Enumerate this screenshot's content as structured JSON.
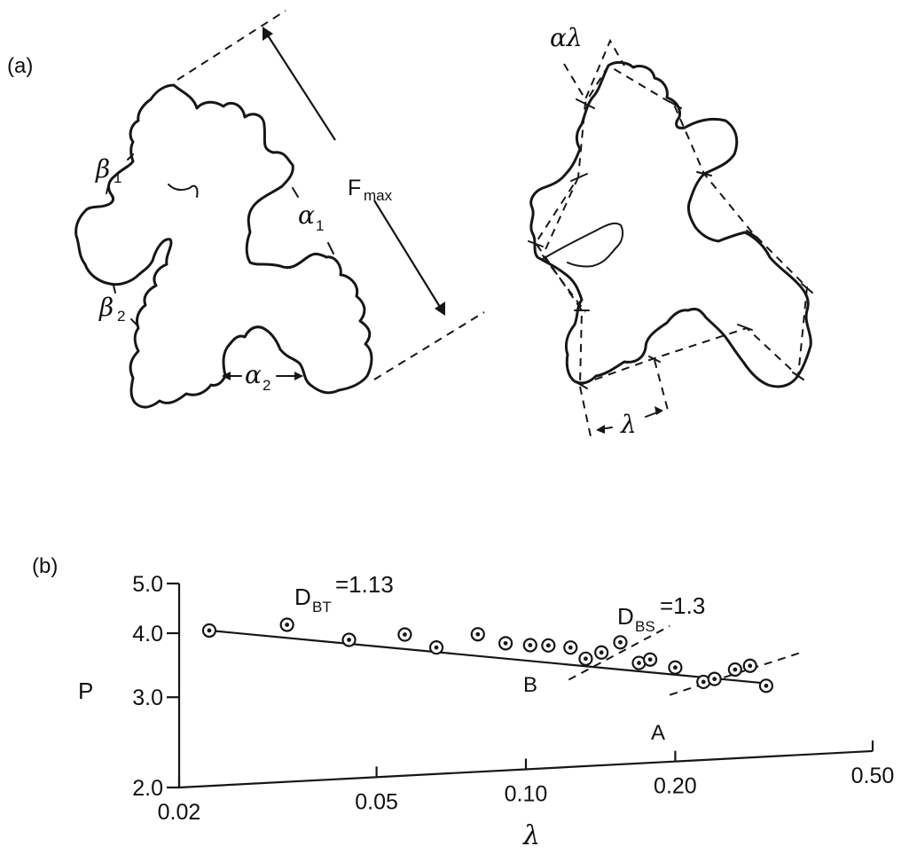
{
  "panel_a": {
    "label": "(a)",
    "fmax_main": "F",
    "fmax_sub": "max",
    "beta1_main": "β",
    "beta1_sub": "1",
    "beta2_main": "β",
    "beta2_sub": "2",
    "alpha1_main": "α",
    "alpha1_sub": "1",
    "alpha2_main": "α",
    "alpha2_sub": "2",
    "alpha_lambda": "αλ",
    "lambda": "λ"
  },
  "panel_b": {
    "label": "(b)",
    "ylabel": "P",
    "xlabel": "λ",
    "dbt_main": "D",
    "dbt_sub": "BT",
    "dbt_value": "=1.13",
    "dbs_main": "D",
    "dbs_sub": "BS",
    "dbs_value": "=1.3",
    "line_a_label": "A",
    "line_b_label": "B"
  },
  "chart_data": {
    "type": "scatter",
    "xscale": "log",
    "yscale": "log",
    "xlim": [
      0.02,
      0.5
    ],
    "ylim": [
      2.0,
      5.0
    ],
    "xticks": [
      {
        "value": 0.02,
        "label": "0.02"
      },
      {
        "value": 0.05,
        "label": "0.05"
      },
      {
        "value": 0.1,
        "label": "0.10"
      },
      {
        "value": 0.2,
        "label": "0.20"
      },
      {
        "value": 0.5,
        "label": "0.50"
      }
    ],
    "yticks": [
      {
        "value": 2.0,
        "label": "2.0"
      },
      {
        "value": 3.0,
        "label": "3.0"
      },
      {
        "value": 4.0,
        "label": "4.0"
      },
      {
        "value": 5.0,
        "label": "5.0"
      }
    ],
    "xlabel": "λ",
    "ylabel": "P",
    "grid": false,
    "points": [
      {
        "x": 0.023,
        "y": 4.02
      },
      {
        "x": 0.033,
        "y": 4.05
      },
      {
        "x": 0.044,
        "y": 3.73
      },
      {
        "x": 0.057,
        "y": 3.77
      },
      {
        "x": 0.066,
        "y": 3.53
      },
      {
        "x": 0.08,
        "y": 3.71
      },
      {
        "x": 0.091,
        "y": 3.54
      },
      {
        "x": 0.102,
        "y": 3.49
      },
      {
        "x": 0.111,
        "y": 3.47
      },
      {
        "x": 0.123,
        "y": 3.42
      },
      {
        "x": 0.132,
        "y": 3.24
      },
      {
        "x": 0.142,
        "y": 3.32
      },
      {
        "x": 0.155,
        "y": 3.46
      },
      {
        "x": 0.169,
        "y": 3.14
      },
      {
        "x": 0.178,
        "y": 3.18
      },
      {
        "x": 0.2,
        "y": 3.05
      },
      {
        "x": 0.228,
        "y": 2.84
      },
      {
        "x": 0.24,
        "y": 2.87
      },
      {
        "x": 0.264,
        "y": 2.98
      },
      {
        "x": 0.283,
        "y": 3.02
      },
      {
        "x": 0.305,
        "y": 2.75
      }
    ],
    "fit_line": {
      "x": [
        0.023,
        0.305
      ],
      "y": [
        4.02,
        2.78
      ]
    },
    "line_b": {
      "x": [
        0.122,
        0.195
      ],
      "y": [
        2.96,
        3.68
      ]
    },
    "line_a": {
      "x": [
        0.195,
        0.36
      ],
      "y": [
        2.7,
        3.17
      ]
    }
  }
}
